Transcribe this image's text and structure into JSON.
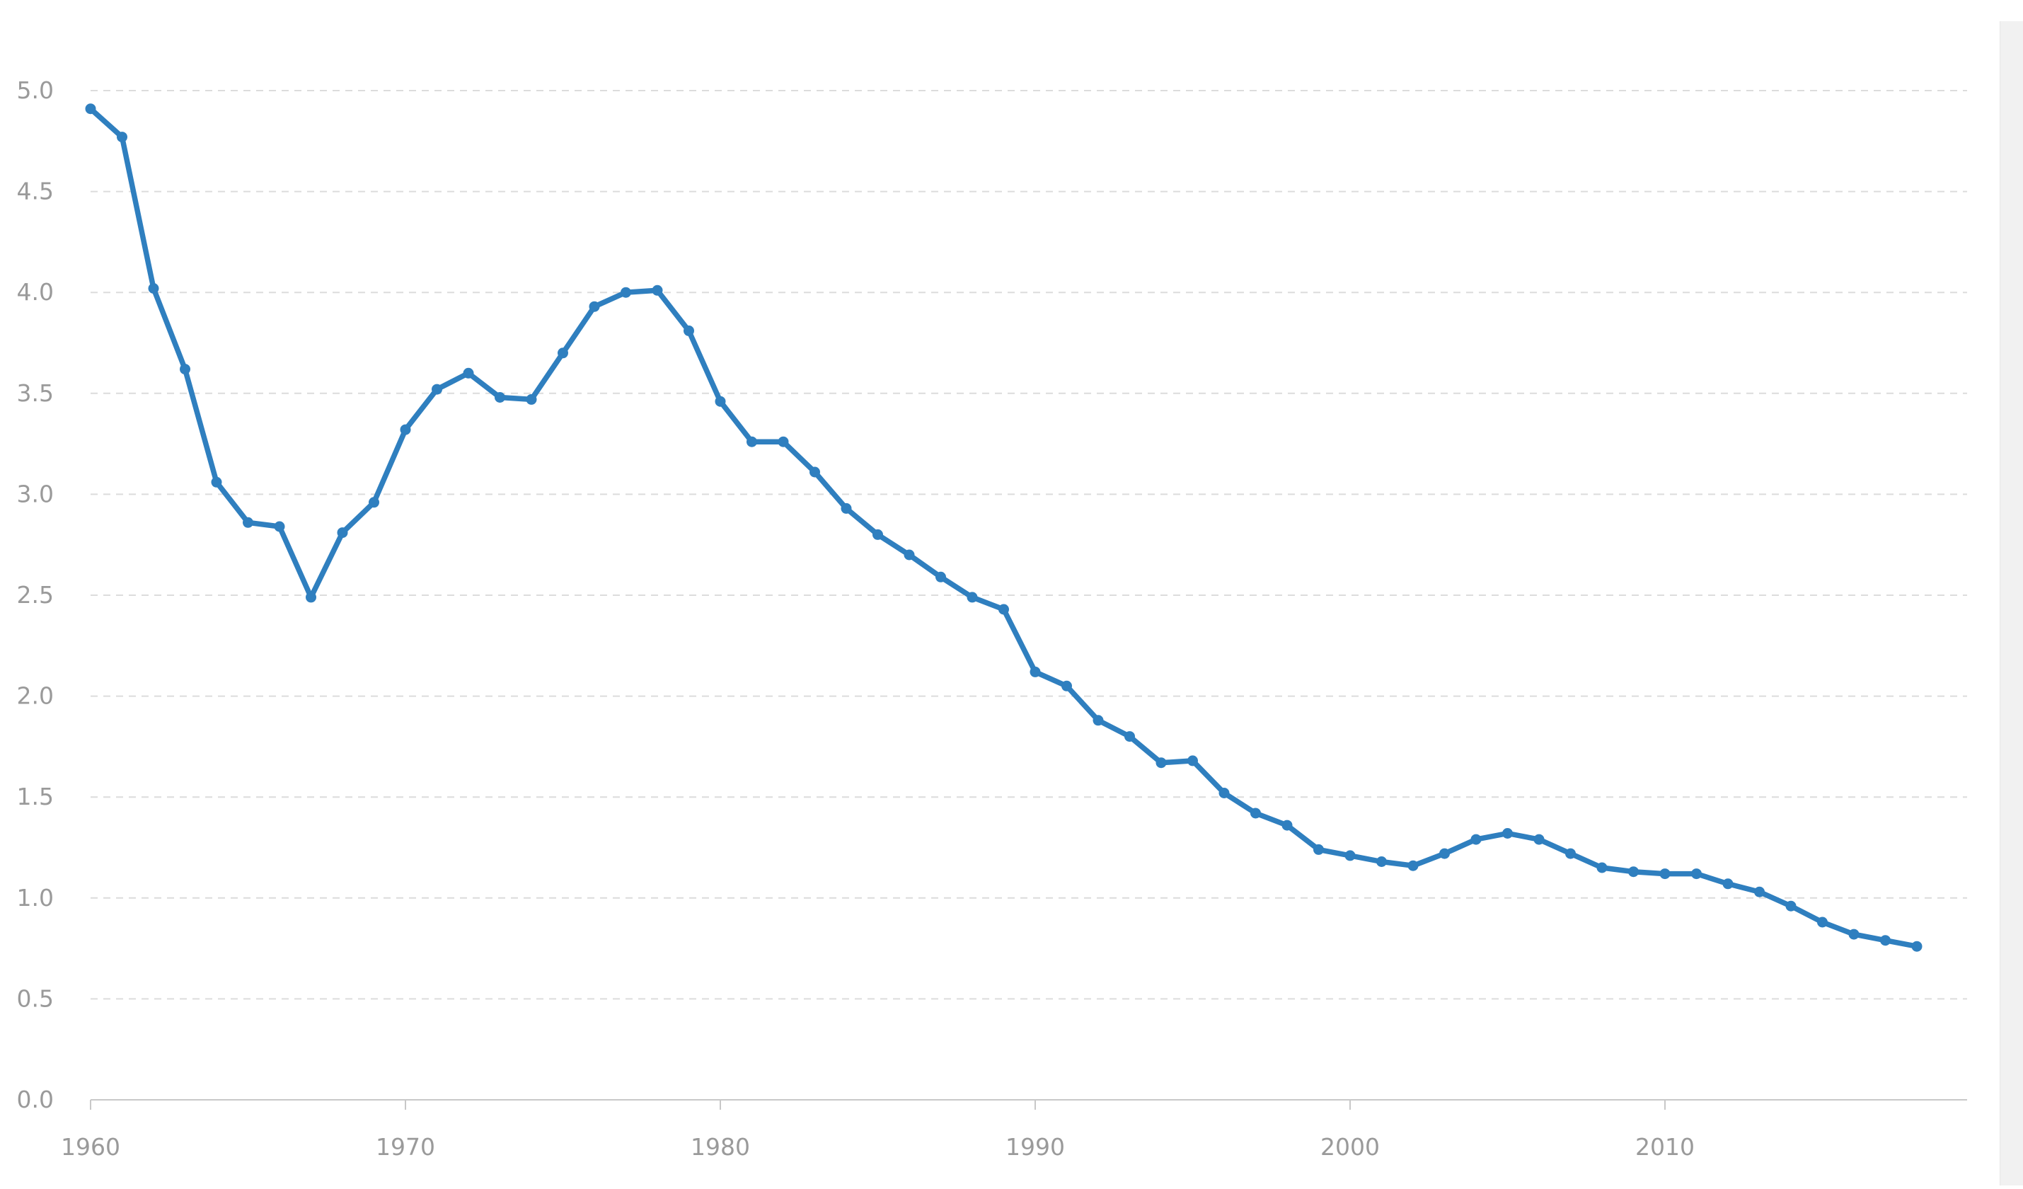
{
  "chart_data": {
    "type": "line",
    "title": "",
    "xlabel": "",
    "ylabel": "",
    "xlim": [
      1960,
      2018
    ],
    "ylim": [
      0,
      5
    ],
    "y_ticks": [
      "0.0",
      "0.5",
      "1.0",
      "1.5",
      "2.0",
      "2.5",
      "3.0",
      "3.5",
      "4.0",
      "4.5",
      "5.0"
    ],
    "x_ticks": [
      "1960",
      "1970",
      "1980",
      "1990",
      "2000",
      "2010"
    ],
    "grid": true,
    "legend": "none",
    "color": "#2f7fbf",
    "series": [
      {
        "x": [
          1960,
          1961,
          1962,
          1963,
          1964,
          1965,
          1966,
          1967,
          1968,
          1969,
          1970,
          1971,
          1972,
          1973,
          1974,
          1975,
          1976,
          1977,
          1978,
          1979,
          1980,
          1981,
          1982,
          1983,
          1984,
          1985,
          1986,
          1987,
          1988,
          1989,
          1990,
          1991,
          1992,
          1993,
          1994,
          1995,
          1996,
          1997,
          1998,
          1999,
          2000,
          2001,
          2002,
          2003,
          2004,
          2005,
          2006,
          2007,
          2008,
          2009,
          2010,
          2011,
          2012,
          2013,
          2014,
          2015,
          2016,
          2017,
          2018
        ],
        "values": [
          4.91,
          4.77,
          4.02,
          3.62,
          3.06,
          2.86,
          2.84,
          2.49,
          2.81,
          2.96,
          3.32,
          3.52,
          3.6,
          3.48,
          3.47,
          3.7,
          3.93,
          4.0,
          4.01,
          3.81,
          3.46,
          3.26,
          3.26,
          3.11,
          2.93,
          2.8,
          2.7,
          2.59,
          2.49,
          2.43,
          2.12,
          2.05,
          1.88,
          1.8,
          1.67,
          1.68,
          1.52,
          1.42,
          1.36,
          1.24,
          1.21,
          1.18,
          1.16,
          1.22,
          1.29,
          1.32,
          1.29,
          1.22,
          1.15,
          1.13,
          1.12,
          1.12,
          1.07,
          1.03,
          0.96,
          0.88,
          0.82,
          0.79,
          0.76
        ]
      }
    ]
  }
}
